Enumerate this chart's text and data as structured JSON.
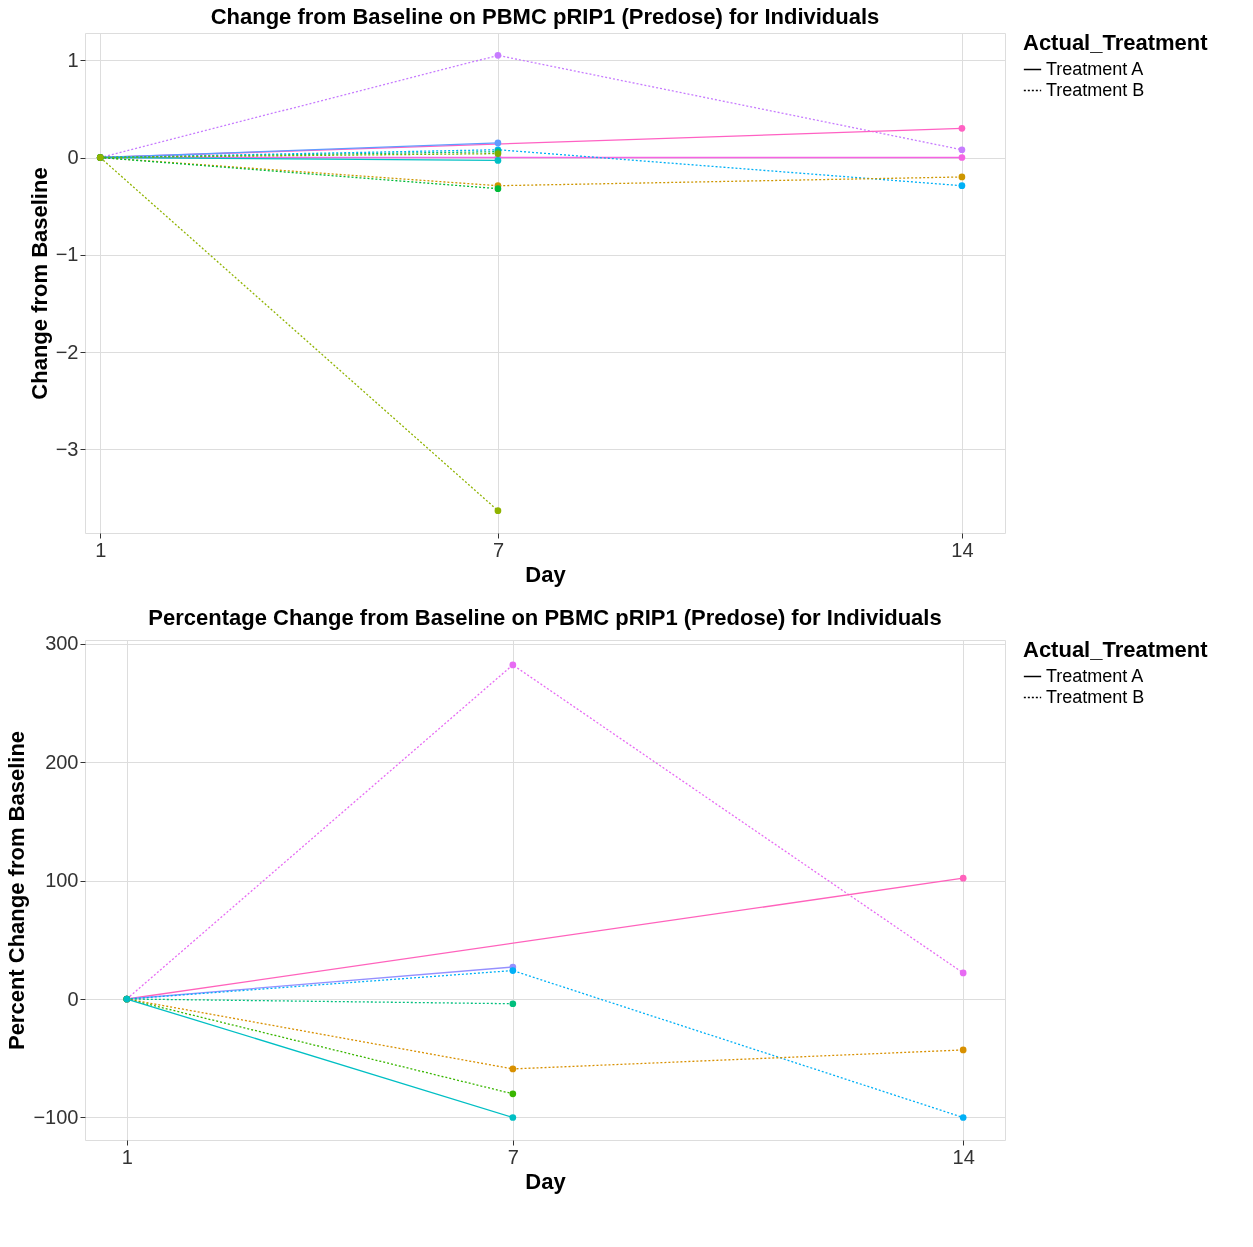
{
  "chart_data": [
    {
      "type": "line",
      "title": "Change from Baseline on PBMC pRIP1 (Predose) for Individuals",
      "xlabel": "Day",
      "ylabel": "Change from Baseline",
      "legend_title": "Actual_Treatment",
      "annotations": [
        "Treatment A",
        "Treatment B"
      ],
      "grid": true,
      "marker": "circle",
      "xlim": [
        0.77,
        14.65
      ],
      "xticks": [
        1,
        7,
        14
      ],
      "ylim": [
        -3.86,
        1.28
      ],
      "yticks": [
        -3,
        -2,
        -1,
        0,
        1
      ],
      "series": [
        {
          "color": "#c77cff",
          "line_style": "dotted",
          "x": [
            1,
            7,
            14
          ],
          "values": [
            0,
            1.05,
            0.08
          ]
        },
        {
          "color": "#ff61c3",
          "line_style": "solid",
          "x": [
            1,
            14
          ],
          "values": [
            0,
            0.3
          ]
        },
        {
          "color": "#f564e3",
          "line_style": "solid",
          "x": [
            1,
            7,
            14
          ],
          "values": [
            0,
            0,
            0
          ]
        },
        {
          "color": "#619cff",
          "line_style": "solid",
          "x": [
            1,
            7
          ],
          "values": [
            0,
            0.15
          ]
        },
        {
          "color": "#00b0f6",
          "line_style": "dotted",
          "x": [
            1,
            7,
            14
          ],
          "values": [
            0,
            0.08,
            -0.29
          ]
        },
        {
          "color": "#00bfc4",
          "line_style": "solid",
          "x": [
            1,
            7
          ],
          "values": [
            0,
            -0.03
          ]
        },
        {
          "color": "#00bf7d",
          "line_style": "dotted",
          "x": [
            1,
            7
          ],
          "values": [
            0,
            0.06
          ]
        },
        {
          "color": "#7cae00",
          "line_style": "dotted",
          "x": [
            1,
            7
          ],
          "values": [
            0,
            0.04
          ]
        },
        {
          "color": "#cd9600",
          "line_style": "dotted",
          "x": [
            1,
            7,
            14
          ],
          "values": [
            0,
            -0.29,
            -0.2
          ]
        },
        {
          "color": "#00ba38",
          "line_style": "dotted",
          "x": [
            1,
            7
          ],
          "values": [
            0,
            -0.32
          ]
        },
        {
          "color": "#8fb300",
          "line_style": "dotted",
          "x": [
            1,
            7
          ],
          "values": [
            0,
            -3.63
          ]
        }
      ]
    },
    {
      "type": "line",
      "title": "Percentage Change from Baseline on PBMC pRIP1 (Predose) for Individuals",
      "xlabel": "Day",
      "ylabel": "Percent Change from Baseline",
      "legend_title": "Actual_Treatment",
      "annotations": [
        "Treatment A",
        "Treatment B"
      ],
      "grid": true,
      "marker": "circle",
      "xlim": [
        0.35,
        14.65
      ],
      "xticks": [
        1,
        7,
        14
      ],
      "ylim": [
        -119,
        303
      ],
      "yticks": [
        -100,
        0,
        100,
        200,
        300
      ],
      "series": [
        {
          "color": "#e76bf3",
          "line_style": "dotted",
          "x": [
            1,
            7,
            14
          ],
          "values": [
            0,
            282,
            22
          ]
        },
        {
          "color": "#ff62bc",
          "line_style": "solid",
          "x": [
            1,
            14
          ],
          "values": [
            0,
            102
          ]
        },
        {
          "color": "#9590ff",
          "line_style": "solid",
          "x": [
            1,
            7
          ],
          "values": [
            0,
            27
          ]
        },
        {
          "color": "#00b0f6",
          "line_style": "dotted",
          "x": [
            1,
            7,
            14
          ],
          "values": [
            0,
            24,
            -100
          ]
        },
        {
          "color": "#00bf7d",
          "line_style": "dotted",
          "x": [
            1,
            7
          ],
          "values": [
            0,
            -4
          ]
        },
        {
          "color": "#d89000",
          "line_style": "dotted",
          "x": [
            1,
            7,
            14
          ],
          "values": [
            0,
            -59,
            -43
          ]
        },
        {
          "color": "#39b600",
          "line_style": "dotted",
          "x": [
            1,
            7
          ],
          "values": [
            0,
            -80
          ]
        },
        {
          "color": "#00bfc4",
          "line_style": "solid",
          "x": [
            1,
            7
          ],
          "values": [
            0,
            -100
          ]
        }
      ]
    }
  ]
}
